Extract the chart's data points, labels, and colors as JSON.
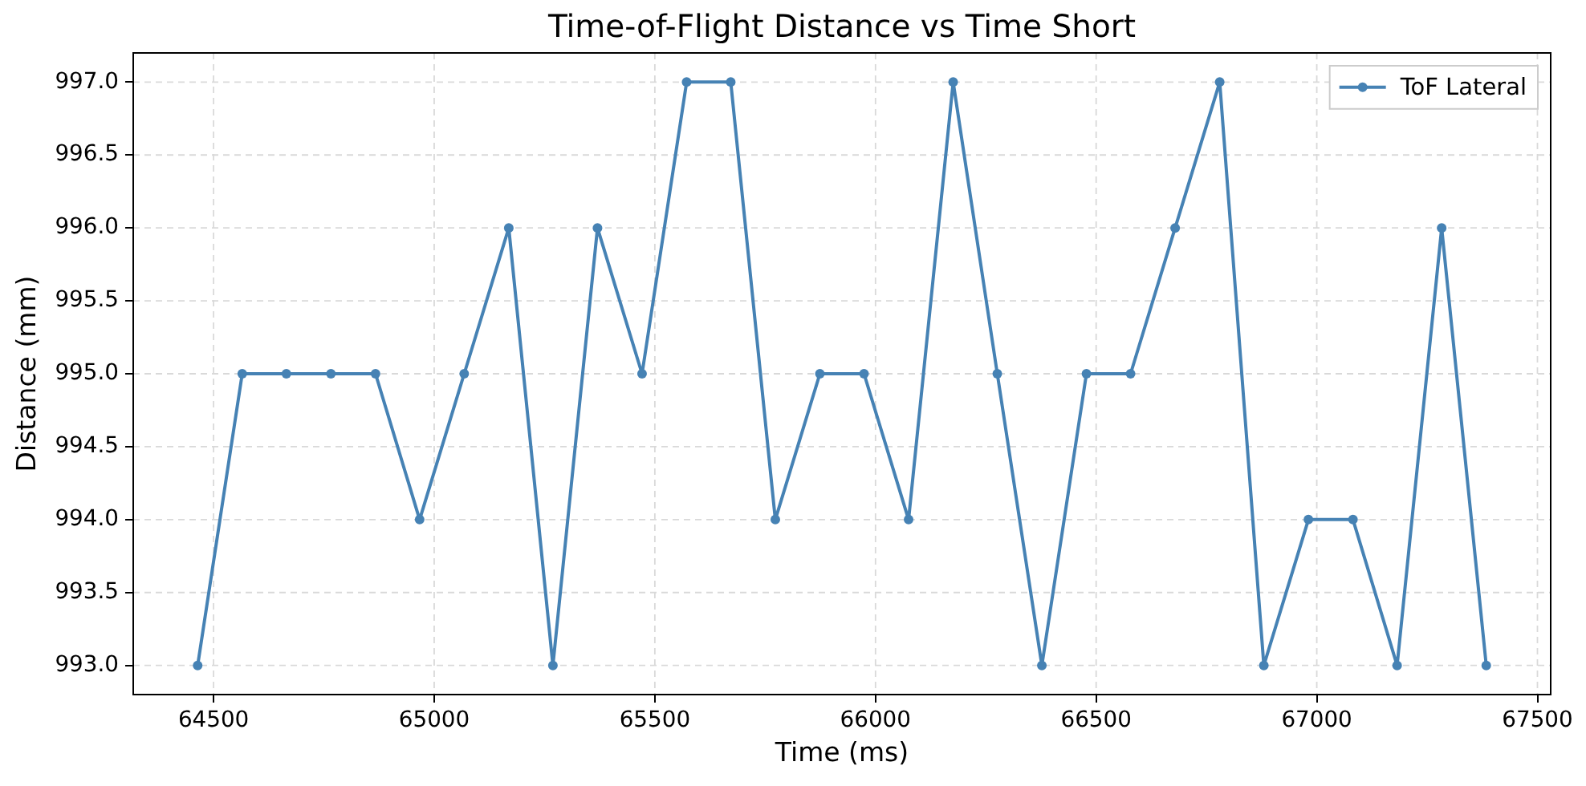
{
  "chart_data": {
    "type": "line",
    "title": "Time-of-Flight Distance vs Time Short",
    "xlabel": "Time (ms)",
    "ylabel": "Distance (mm)",
    "x": [
      64464,
      64565,
      64665,
      64766,
      64867,
      64967,
      65068,
      65169,
      65269,
      65370,
      65471,
      65572,
      65672,
      65773,
      65874,
      65974,
      66075,
      66176,
      66276,
      66377,
      66478,
      66578,
      66679,
      66780,
      66880,
      66981,
      67082,
      67182,
      67283,
      67384
    ],
    "series": [
      {
        "name": "ToF Lateral",
        "color": "#4682b4",
        "values": [
          993,
          995,
          995,
          995,
          995,
          994,
          995,
          996,
          993,
          996,
          995,
          997,
          997,
          994,
          995,
          995,
          994,
          997,
          995,
          993,
          995,
          995,
          996,
          997,
          993,
          994,
          994,
          993,
          996,
          993
        ]
      }
    ],
    "xlim": [
      64318,
      67530
    ],
    "ylim": [
      992.8,
      997.2
    ],
    "xticks": [
      64500,
      65000,
      65500,
      66000,
      66500,
      67000,
      67500
    ],
    "yticks": [
      {
        "value": 993,
        "label": "993.0"
      },
      {
        "value": 993.5,
        "label": "993.5"
      },
      {
        "value": 994,
        "label": "994.0"
      },
      {
        "value": 994.5,
        "label": "994.5"
      },
      {
        "value": 995,
        "label": "995.0"
      },
      {
        "value": 995.5,
        "label": "995.5"
      },
      {
        "value": 996,
        "label": "996.0"
      },
      {
        "value": 996.5,
        "label": "996.5"
      },
      {
        "value": 997,
        "label": "997.0"
      }
    ],
    "grid": true,
    "legend": "top right",
    "marker": "circle",
    "line_style": "solid"
  }
}
